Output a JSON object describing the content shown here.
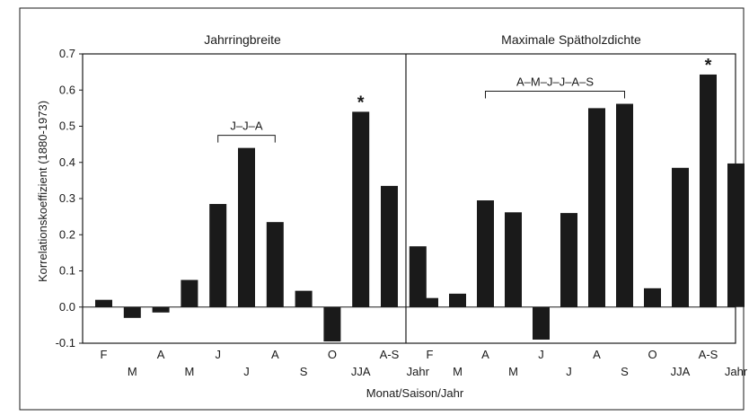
{
  "chart_data": {
    "type": "bar",
    "ylabel": "Korrelationskoeffizient (1880-1973)",
    "xlabel": "Monat/Saison/Jahr",
    "ylim": [
      -0.1,
      0.7
    ],
    "yticks": [
      "-0.1",
      "0.0",
      "0.1",
      "0.2",
      "0.3",
      "0.4",
      "0.5",
      "0.6",
      "0.7"
    ],
    "bar_color": "#1a1a1a",
    "panels": [
      {
        "title": "Jahrringbreite",
        "categories": [
          "F",
          "M",
          "A",
          "M",
          "J",
          "J",
          "A",
          "S",
          "O",
          "JJA",
          "A-S",
          "Jahr"
        ],
        "values": [
          0.02,
          -0.03,
          -0.015,
          0.075,
          0.285,
          0.44,
          0.235,
          0.045,
          -0.095,
          0.54,
          0.335,
          0.168
        ],
        "bracket": {
          "label": "J–J–A",
          "from_index": 4,
          "to_index": 6
        },
        "significant_index": 9,
        "significance_marker": "*"
      },
      {
        "title": "Maximale Spätholzdichte",
        "categories": [
          "F",
          "M",
          "A",
          "M",
          "J",
          "J",
          "A",
          "S",
          "O",
          "JJA",
          "A-S",
          "Jahr"
        ],
        "values": [
          0.025,
          0.037,
          0.295,
          0.262,
          -0.09,
          0.26,
          0.55,
          0.562,
          0.052,
          0.385,
          0.643,
          0.397
        ],
        "bracket": {
          "label": "A–M–J–J–A–S",
          "from_index": 2,
          "to_index": 7
        },
        "significant_index": 10,
        "significance_marker": "*"
      }
    ]
  }
}
